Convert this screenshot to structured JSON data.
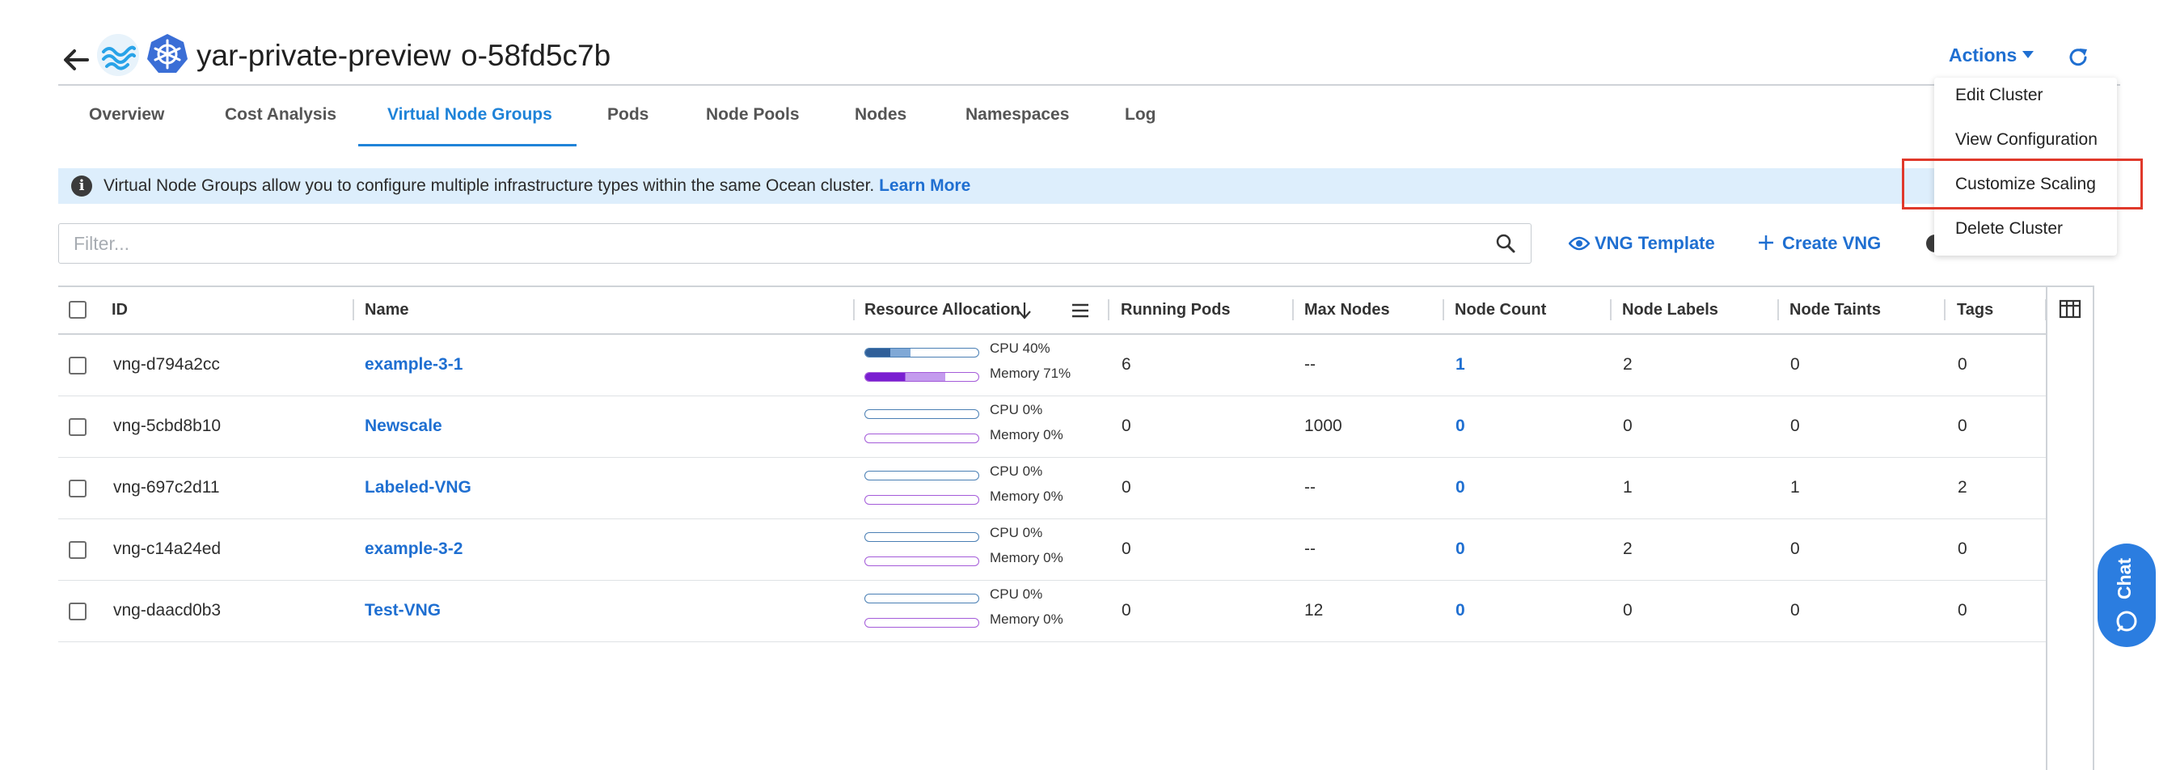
{
  "header": {
    "cluster_name": "yar-private-preview",
    "cluster_id": "o-58fd5c7b",
    "actions_label": "Actions"
  },
  "tabs": [
    {
      "label": "Overview",
      "active": false
    },
    {
      "label": "Cost Analysis",
      "active": false
    },
    {
      "label": "Virtual Node Groups",
      "active": true
    },
    {
      "label": "Pods",
      "active": false
    },
    {
      "label": "Node Pools",
      "active": false
    },
    {
      "label": "Nodes",
      "active": false
    },
    {
      "label": "Namespaces",
      "active": false
    },
    {
      "label": "Log",
      "active": false
    }
  ],
  "banner": {
    "text": "Virtual Node Groups allow you to configure multiple infrastructure types within the same Ocean cluster.",
    "link": "Learn More"
  },
  "filter": {
    "placeholder": "Filter..."
  },
  "toolbar": {
    "vng_template": "VNG Template",
    "create_vng": "Create VNG"
  },
  "table": {
    "headers": {
      "id": "ID",
      "name": "Name",
      "resource": "Resource Allocation",
      "running_pods": "Running Pods",
      "max_nodes": "Max Nodes",
      "node_count": "Node Count",
      "node_labels": "Node Labels",
      "node_taints": "Node Taints",
      "tags": "Tags"
    },
    "rows": [
      {
        "id": "vng-d794a2cc",
        "name": "example-3-1",
        "cpu_label": "CPU 40%",
        "cpu": 0.4,
        "mem_label": "Memory 71%",
        "mem": 0.71,
        "running_pods": "6",
        "max_nodes": "--",
        "node_count": "1",
        "node_labels": "2",
        "node_taints": "0",
        "tags": "0"
      },
      {
        "id": "vng-5cbd8b10",
        "name": "Newscale",
        "cpu_label": "CPU 0%",
        "cpu": 0,
        "mem_label": "Memory 0%",
        "mem": 0,
        "running_pods": "0",
        "max_nodes": "1000",
        "node_count": "0",
        "node_labels": "0",
        "node_taints": "0",
        "tags": "0"
      },
      {
        "id": "vng-697c2d11",
        "name": "Labeled-VNG",
        "cpu_label": "CPU 0%",
        "cpu": 0,
        "mem_label": "Memory 0%",
        "mem": 0,
        "running_pods": "0",
        "max_nodes": "--",
        "node_count": "0",
        "node_labels": "1",
        "node_taints": "1",
        "tags": "2"
      },
      {
        "id": "vng-c14a24ed",
        "name": "example-3-2",
        "cpu_label": "CPU 0%",
        "cpu": 0,
        "mem_label": "Memory 0%",
        "mem": 0,
        "running_pods": "0",
        "max_nodes": "--",
        "node_count": "0",
        "node_labels": "2",
        "node_taints": "0",
        "tags": "0"
      },
      {
        "id": "vng-daacd0b3",
        "name": "Test-VNG",
        "cpu_label": "CPU 0%",
        "cpu": 0,
        "mem_label": "Memory 0%",
        "mem": 0,
        "running_pods": "0",
        "max_nodes": "12",
        "node_count": "0",
        "node_labels": "0",
        "node_taints": "0",
        "tags": "0"
      }
    ]
  },
  "actions_menu": {
    "items": [
      "Edit Cluster",
      "View Configuration",
      "Customize Scaling",
      "Delete Cluster"
    ],
    "highlighted": "Customize Scaling"
  },
  "chat": {
    "label": "Chat"
  },
  "colors": {
    "accent": "#1f6fd1",
    "active_tab": "#1f83d8",
    "banner_bg": "#ddeefc",
    "cpu_bar": "#2f5f99",
    "memory_bar": "#7a1fd1",
    "highlight": "#e0392b",
    "chat": "#2b7de0"
  }
}
